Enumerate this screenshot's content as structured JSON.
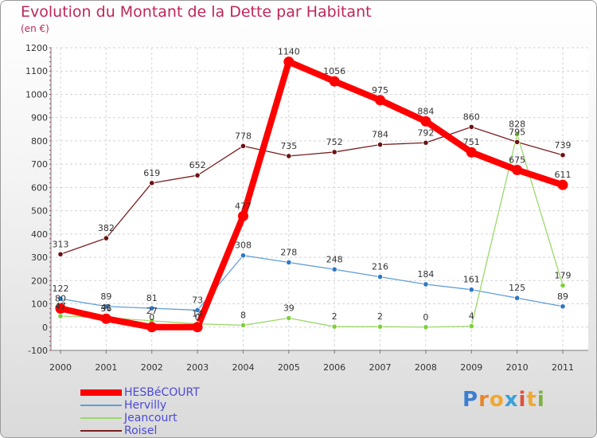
{
  "title": "Evolution du Montant de la Dette par Habitant",
  "subtitle": "(en €)",
  "brand": {
    "text": "Proxiti",
    "letter_colors": [
      "#3c7fd0",
      "#e8862a",
      "#f0a830",
      "#3ba0d8",
      "#e0503a",
      "#f0a830",
      "#7cb242"
    ]
  },
  "chart_data": {
    "type": "line",
    "title": "Evolution du Montant de la Dette par Habitant",
    "ylabel": "(en €)",
    "xlabel": "",
    "ylim": [
      -100,
      1200
    ],
    "yticks": [
      -100,
      0,
      100,
      200,
      300,
      400,
      500,
      600,
      700,
      800,
      900,
      1000,
      1100,
      1200
    ],
    "x": [
      "2000",
      "2001",
      "2002",
      "2003",
      "2004",
      "2005",
      "2006",
      "2007",
      "2008",
      "2009",
      "2010",
      "2011"
    ],
    "grid": true,
    "series": [
      {
        "name": "Roisel",
        "color": "#7a1f1f",
        "marker": "#6b1212",
        "width": 1.3,
        "values": [
          313,
          382,
          619,
          652,
          778,
          735,
          752,
          784,
          792,
          860,
          795,
          739
        ],
        "labels": [
          "313",
          "382",
          "619",
          "652",
          "778",
          "735",
          "752",
          "784",
          "792",
          "860",
          "795",
          "739"
        ]
      },
      {
        "name": "Hervilly",
        "color": "#5f9ed8",
        "marker": "#2e77c4",
        "width": 1.3,
        "values": [
          122,
          89,
          81,
          73,
          308,
          278,
          248,
          216,
          184,
          161,
          125,
          89
        ],
        "labels": [
          "122",
          "89",
          "81",
          "73",
          "308",
          "278",
          "248",
          "216",
          "184",
          "161",
          "125",
          "89"
        ]
      },
      {
        "name": "Jeancourt",
        "color": "#9bd86a",
        "marker": "#7ed03a",
        "width": 1.3,
        "values": [
          47,
          41,
          27,
          14,
          8,
          39,
          2,
          2,
          0,
          4,
          828,
          179
        ],
        "labels": [
          "47",
          "41",
          "27",
          "14",
          "8",
          "39",
          "2",
          "2",
          "0",
          "4",
          "828",
          "179"
        ]
      },
      {
        "name": "HESBéCOURT",
        "color": "#ff0000",
        "marker": "#ff0000",
        "width": 8,
        "values": [
          80,
          36,
          0,
          0,
          477,
          1140,
          1056,
          975,
          884,
          751,
          675,
          611
        ],
        "labels": [
          "80",
          "36",
          "0",
          "0",
          "477",
          "1140",
          "1056",
          "975",
          "884",
          "751",
          "675",
          "611"
        ]
      }
    ],
    "legend": {
      "position": "bottom-left",
      "entries": [
        "HESBéCOURT",
        "Hervilly",
        "Jeancourt",
        "Roisel"
      ]
    }
  }
}
